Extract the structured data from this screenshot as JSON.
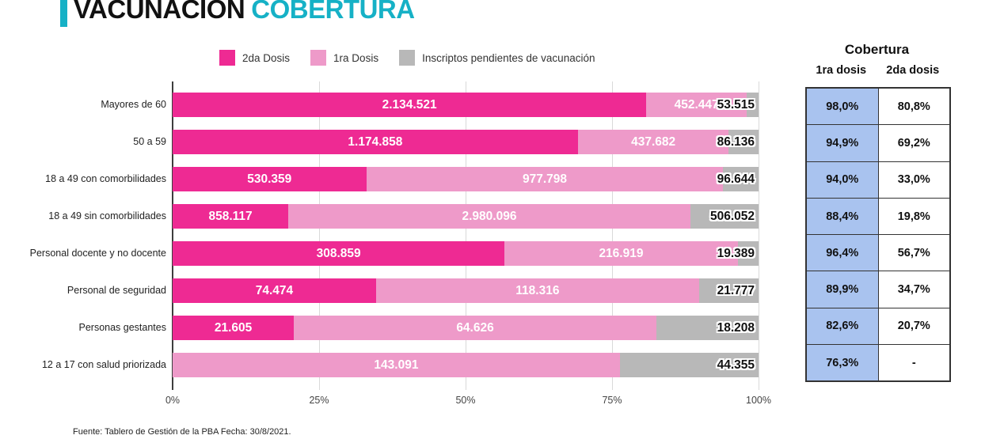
{
  "page": {
    "title_black": "VACUNACIÓN",
    "title_accent": "COBERTURA",
    "footer": "Fuente: Tablero de Gestión de la PBA Fecha: 30/8/2021."
  },
  "colors": {
    "accent": "#16b1c6",
    "dosis2": "#ee2a93",
    "dosis1": "#ee9ac9",
    "pending": "#b8b8b8",
    "table_blue": "#a9c3ef",
    "gridline": "#d9d9d9",
    "axis": "#3d3d3d"
  },
  "legend": [
    {
      "label": "2da Dosis",
      "color": "#ee2a93"
    },
    {
      "label": "1ra Dosis",
      "color": "#ee9ac9"
    },
    {
      "label": "Inscriptos pendientes de vacunación",
      "color": "#b8b8b8"
    }
  ],
  "chart_data": {
    "type": "bar",
    "variant": "100%-stacked-horizontal",
    "xlabel": "",
    "ylabel": "",
    "x_ticks": [
      "0%",
      "25%",
      "50%",
      "75%",
      "100%"
    ],
    "x_range": [
      0,
      100
    ],
    "series_names": [
      "2da Dosis",
      "1ra Dosis",
      "Inscriptos pendientes de vacunación"
    ],
    "rows": [
      {
        "category": "Mayores de 60",
        "dosis2": 2134521,
        "dosis1": 452447,
        "pendientes": 53515,
        "labels": {
          "dosis2": "2.134.521",
          "dosis1": "452.447",
          "pendientes": "53.515"
        }
      },
      {
        "category": "50 a 59",
        "dosis2": 1174858,
        "dosis1": 437682,
        "pendientes": 86136,
        "labels": {
          "dosis2": "1.174.858",
          "dosis1": "437.682",
          "pendientes": "86.136"
        }
      },
      {
        "category": "18 a 49 con comorbilidades",
        "dosis2": 530359,
        "dosis1": 977798,
        "pendientes": 96644,
        "labels": {
          "dosis2": "530.359",
          "dosis1": "977.798",
          "pendientes": "96.644"
        }
      },
      {
        "category": "18 a 49 sin comorbilidades",
        "dosis2": 858117,
        "dosis1": 2980096,
        "pendientes": 506052,
        "labels": {
          "dosis2": "858.117",
          "dosis1": "2.980.096",
          "pendientes": "506.052"
        }
      },
      {
        "category": "Personal docente y no docente",
        "dosis2": 308859,
        "dosis1": 216919,
        "pendientes": 19389,
        "labels": {
          "dosis2": "308.859",
          "dosis1": "216.919",
          "pendientes": "19.389"
        }
      },
      {
        "category": "Personal de seguridad",
        "dosis2": 74474,
        "dosis1": 118316,
        "pendientes": 21777,
        "labels": {
          "dosis2": "74.474",
          "dosis1": "118.316",
          "pendientes": "21.777"
        }
      },
      {
        "category": "Personas gestantes",
        "dosis2": 21605,
        "dosis1": 64626,
        "pendientes": 18208,
        "labels": {
          "dosis2": "21.605",
          "dosis1": "64.626",
          "pendientes": "18.208"
        }
      },
      {
        "category": "12 a 17 con salud priorizada",
        "dosis2": null,
        "dosis1": 143091,
        "pendientes": 44355,
        "labels": {
          "dosis2": "",
          "dosis1": "143.091",
          "pendientes": "44.355"
        }
      }
    ]
  },
  "coverage_table": {
    "title": "Cobertura",
    "columns": [
      "1ra dosis",
      "2da dosis"
    ],
    "rows": [
      {
        "dosis1": "98,0%",
        "dosis2": "80,8%"
      },
      {
        "dosis1": "94,9%",
        "dosis2": "69,2%"
      },
      {
        "dosis1": "94,0%",
        "dosis2": "33,0%"
      },
      {
        "dosis1": "88,4%",
        "dosis2": "19,8%"
      },
      {
        "dosis1": "96,4%",
        "dosis2": "56,7%"
      },
      {
        "dosis1": "89,9%",
        "dosis2": "34,7%"
      },
      {
        "dosis1": "82,6%",
        "dosis2": "20,7%"
      },
      {
        "dosis1": "76,3%",
        "dosis2": "-"
      }
    ]
  }
}
